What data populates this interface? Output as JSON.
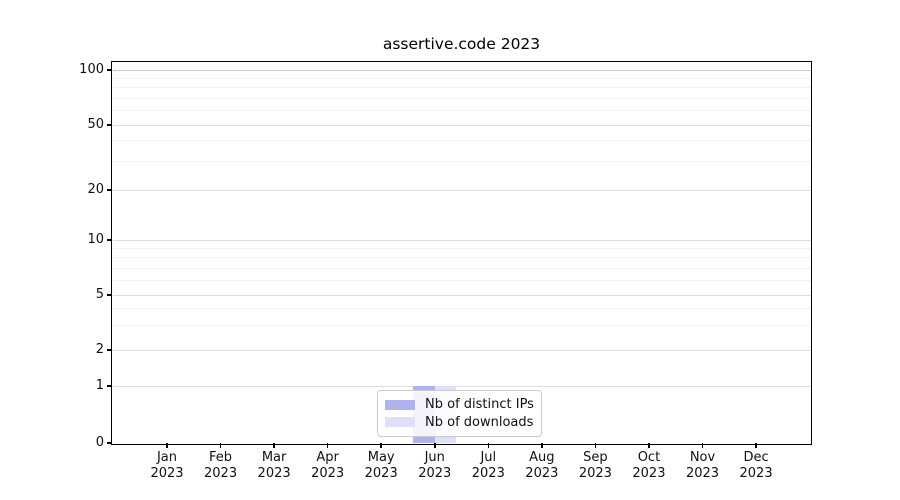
{
  "chart_data": {
    "type": "bar",
    "title": "assertive.code 2023",
    "categories": [
      "Jan 2023",
      "Feb 2023",
      "Mar 2023",
      "Apr 2023",
      "May 2023",
      "Jun 2023",
      "Jul 2023",
      "Aug 2023",
      "Sep 2023",
      "Oct 2023",
      "Nov 2023",
      "Dec 2023"
    ],
    "series": [
      {
        "name": "Nb of distinct IPs",
        "color": "#aeb3ee",
        "values": [
          0,
          0,
          0,
          0,
          0,
          1,
          0,
          0,
          0,
          0,
          0,
          0
        ]
      },
      {
        "name": "Nb of downloads",
        "color": "#dee0fa",
        "values": [
          0,
          0,
          0,
          0,
          0,
          1,
          0,
          0,
          0,
          0,
          0,
          0
        ]
      }
    ],
    "xlabel": "",
    "ylabel": "",
    "yscale": "symlog",
    "ylim": [
      0,
      110
    ],
    "y_major_ticks": [
      0,
      1,
      2,
      5,
      10,
      20,
      50,
      100
    ],
    "y_minor_ticks": [
      3,
      4,
      6,
      7,
      8,
      9,
      30,
      40,
      60,
      70,
      80,
      90
    ],
    "grid": "horizontal-major-and-minor",
    "legend_position": "lower center",
    "colors": {
      "axis": "#000000",
      "grid_major": "#dedede",
      "grid_minor": "#f2f2f2",
      "grid_top": "#c8c8c8",
      "text": "#111111",
      "background": "#ffffff"
    }
  },
  "legend": {
    "items": [
      {
        "label": "Nb of distinct IPs",
        "color": "#aeb3ee"
      },
      {
        "label": "Nb of downloads",
        "color": "#dee0fa"
      }
    ]
  }
}
